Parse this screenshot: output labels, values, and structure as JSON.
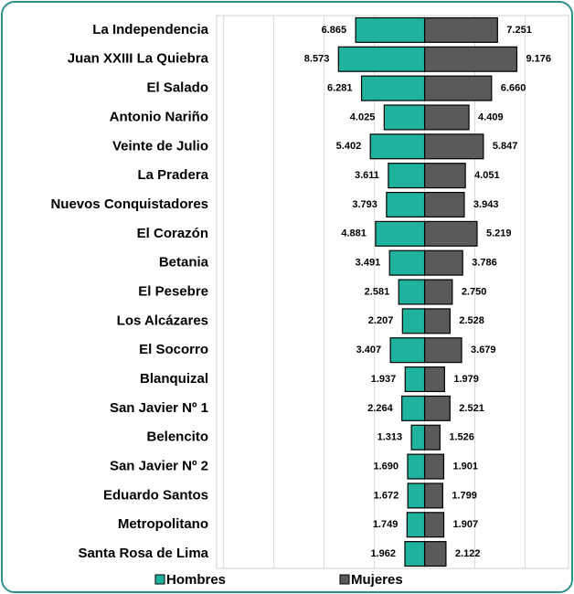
{
  "chart_data": {
    "type": "pyramid",
    "categories": [
      "La Independencia",
      "Juan XXIII  La Quiebra",
      "El Salado",
      "Antonio Nariño",
      "Veinte de Julio",
      "La Pradera",
      "Nuevos Conquistadores",
      "El Corazón",
      "Betania",
      "El Pesebre",
      "Los Alcázares",
      "El Socorro",
      "Blanquizal",
      "San Javier Nº 1",
      "Belencito",
      "San Javier Nº 2",
      "Eduardo Santos",
      "Metropolitano",
      "Santa Rosa de Lima"
    ],
    "series": [
      {
        "name": "Hombres",
        "color": "#1fb39e",
        "side": "left",
        "values": [
          6865,
          8573,
          6281,
          4025,
          5402,
          3611,
          3793,
          4881,
          3491,
          2581,
          2207,
          3407,
          1937,
          2264,
          1313,
          1690,
          1672,
          1749,
          1962
        ],
        "value_labels": [
          "6.865",
          "8.573",
          "6.281",
          "4.025",
          "5.402",
          "3.611",
          "3.793",
          "4.881",
          "3.491",
          "2.581",
          "2.207",
          "3.407",
          "1.937",
          "2.264",
          "1.313",
          "1.690",
          "1.672",
          "1.749",
          "1.962"
        ]
      },
      {
        "name": "Mujeres",
        "color": "#5a5a5a",
        "side": "right",
        "values": [
          7251,
          9176,
          6660,
          4409,
          5847,
          4051,
          3943,
          5219,
          3786,
          2750,
          2528,
          3679,
          1979,
          2521,
          1526,
          1901,
          1799,
          1907,
          2122
        ],
        "value_labels": [
          "7.251",
          "9.176",
          "6.660",
          "4.409",
          "5.847",
          "4.051",
          "3.943",
          "5.219",
          "3.786",
          "2.750",
          "2.528",
          "3.679",
          "1.979",
          "2.521",
          "1.526",
          "1.901",
          "1.799",
          "1.907",
          "2.122"
        ]
      }
    ],
    "xlim": [
      -20700,
      14500
    ],
    "xticks": [
      -20000,
      -15000,
      -10000,
      -5000,
      0,
      5000,
      10000
    ],
    "grid": true
  }
}
